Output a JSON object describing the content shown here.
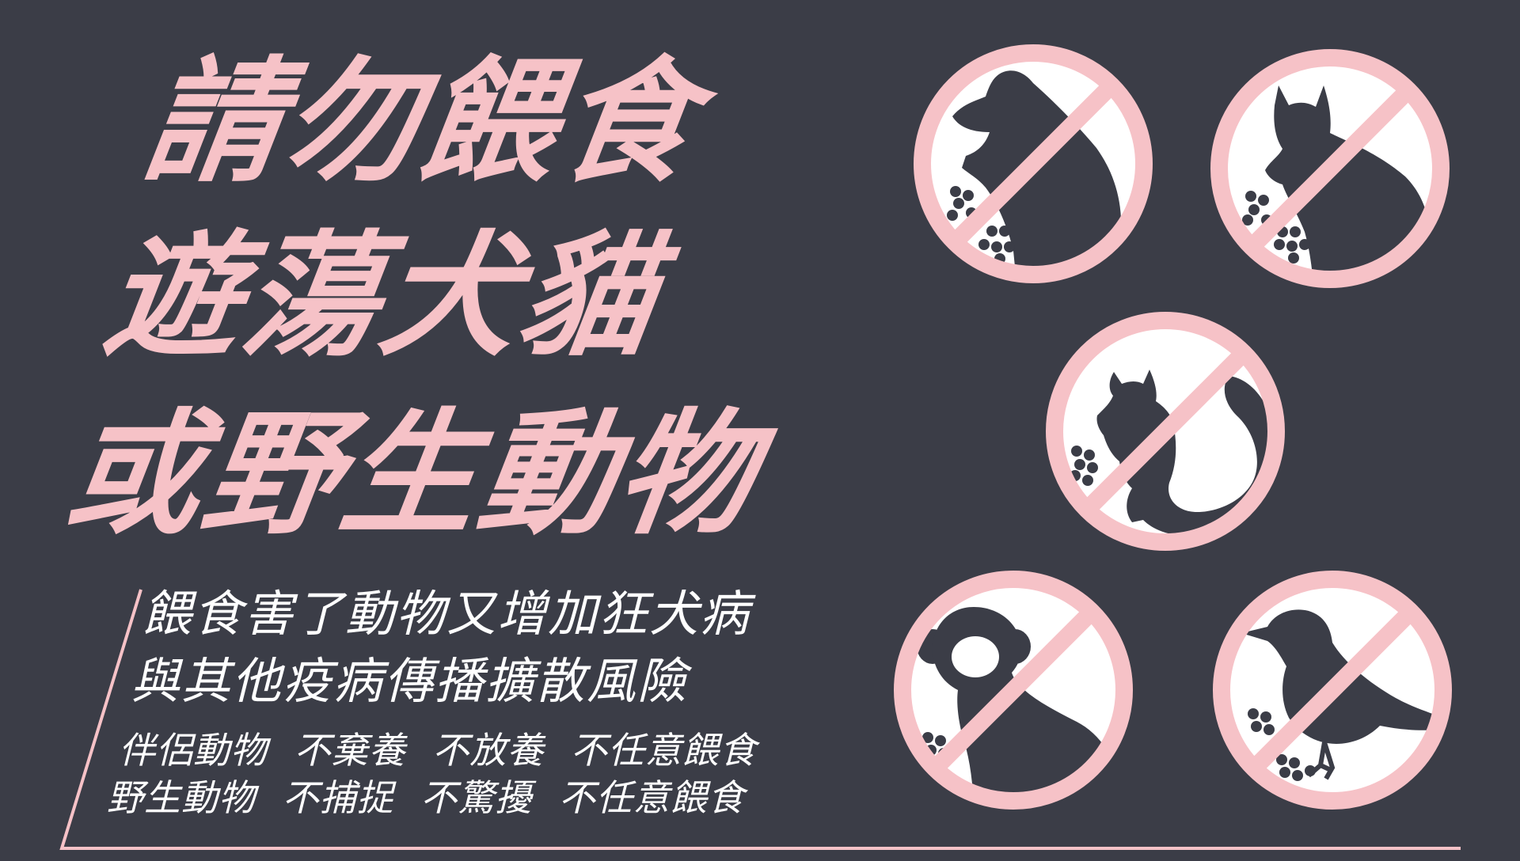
{
  "headline": {
    "line1": "請勿餵食",
    "line2": "遊蕩犬貓",
    "line3": "或野生動物"
  },
  "subtitle": {
    "line1": "餵食害了動物又增加狂犬病",
    "line2": "與其他疫病傳播擴散風險"
  },
  "rules": {
    "line1": "伴侶動物 不棄養 不放養 不任意餵食",
    "line2": "野生動物 不捕捉 不驚擾 不任意餵食"
  },
  "colors": {
    "background": "#3b3d47",
    "accent_pink": "#f6c2c7",
    "text_white": "#ffffff",
    "silhouette": "#3b3d47"
  },
  "signs": [
    {
      "icon": "no-feeding-dog-icon"
    },
    {
      "icon": "no-feeding-cat-icon"
    },
    {
      "icon": "no-feeding-squirrel-icon"
    },
    {
      "icon": "no-feeding-monkey-icon"
    },
    {
      "icon": "no-feeding-bird-icon"
    }
  ]
}
